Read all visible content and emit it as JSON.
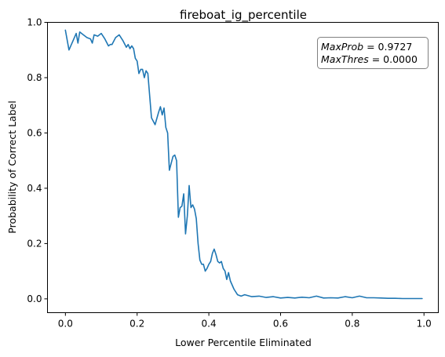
{
  "chart_data": {
    "type": "line",
    "title": "fireboat_ig_percentile",
    "xlabel": "Lower Percentile Eliminated",
    "ylabel": "Probability of Correct Label",
    "xlim": [
      -0.05,
      1.04
    ],
    "ylim": [
      -0.05,
      1.0
    ],
    "x_ticks": [
      0.0,
      0.2,
      0.4,
      0.6,
      0.8,
      1.0
    ],
    "x_tick_labels": [
      "0.0",
      "0.2",
      "0.4",
      "0.6",
      "0.8",
      "1.0"
    ],
    "y_ticks": [
      0.0,
      0.2,
      0.4,
      0.6,
      0.8,
      1.0
    ],
    "y_tick_labels": [
      "0.0",
      "0.2",
      "0.4",
      "0.6",
      "0.8",
      "1.0"
    ],
    "grid": false,
    "line_color": "#1f77b4",
    "annotation": {
      "line1_var": "MaxProb",
      "line1_eq": " = 0.9727",
      "line2_var": "MaxThres",
      "line2_eq": " = 0.0000",
      "position": "top-right"
    },
    "series": [
      {
        "x": [
          0.0,
          0.01,
          0.02,
          0.03,
          0.035,
          0.04,
          0.05,
          0.06,
          0.07,
          0.075,
          0.08,
          0.09,
          0.1,
          0.11,
          0.12,
          0.125,
          0.13,
          0.14,
          0.15,
          0.16,
          0.17,
          0.175,
          0.18,
          0.185,
          0.19,
          0.195,
          0.2,
          0.205,
          0.21,
          0.215,
          0.22,
          0.225,
          0.23,
          0.24,
          0.25,
          0.26,
          0.265,
          0.27,
          0.275,
          0.28,
          0.285,
          0.29,
          0.295,
          0.3,
          0.305,
          0.31,
          0.315,
          0.32,
          0.325,
          0.33,
          0.335,
          0.34,
          0.345,
          0.35,
          0.355,
          0.36,
          0.365,
          0.37,
          0.375,
          0.38,
          0.385,
          0.39,
          0.395,
          0.4,
          0.405,
          0.41,
          0.415,
          0.42,
          0.425,
          0.43,
          0.435,
          0.44,
          0.445,
          0.45,
          0.455,
          0.46,
          0.47,
          0.48,
          0.49,
          0.5,
          0.52,
          0.54,
          0.56,
          0.58,
          0.6,
          0.62,
          0.64,
          0.66,
          0.68,
          0.7,
          0.72,
          0.74,
          0.76,
          0.78,
          0.8,
          0.82,
          0.84,
          0.86,
          0.88,
          0.9,
          0.92,
          0.94,
          0.96,
          0.98,
          0.995
        ],
        "y": [
          0.972,
          0.9,
          0.93,
          0.96,
          0.925,
          0.965,
          0.955,
          0.945,
          0.94,
          0.925,
          0.955,
          0.95,
          0.96,
          0.94,
          0.915,
          0.92,
          0.92,
          0.945,
          0.955,
          0.935,
          0.91,
          0.92,
          0.905,
          0.915,
          0.905,
          0.87,
          0.86,
          0.815,
          0.83,
          0.83,
          0.8,
          0.825,
          0.815,
          0.655,
          0.63,
          0.675,
          0.695,
          0.665,
          0.69,
          0.62,
          0.6,
          0.465,
          0.49,
          0.515,
          0.52,
          0.5,
          0.295,
          0.33,
          0.335,
          0.38,
          0.235,
          0.3,
          0.41,
          0.33,
          0.34,
          0.325,
          0.29,
          0.2,
          0.14,
          0.125,
          0.125,
          0.1,
          0.11,
          0.125,
          0.135,
          0.165,
          0.18,
          0.16,
          0.135,
          0.13,
          0.135,
          0.11,
          0.1,
          0.07,
          0.095,
          0.065,
          0.035,
          0.015,
          0.01,
          0.015,
          0.008,
          0.01,
          0.005,
          0.008,
          0.003,
          0.005,
          0.003,
          0.006,
          0.004,
          0.01,
          0.003,
          0.004,
          0.003,
          0.008,
          0.004,
          0.01,
          0.004,
          0.004,
          0.003,
          0.002,
          0.002,
          0.001,
          0.001,
          0.001,
          0.001
        ]
      }
    ]
  }
}
